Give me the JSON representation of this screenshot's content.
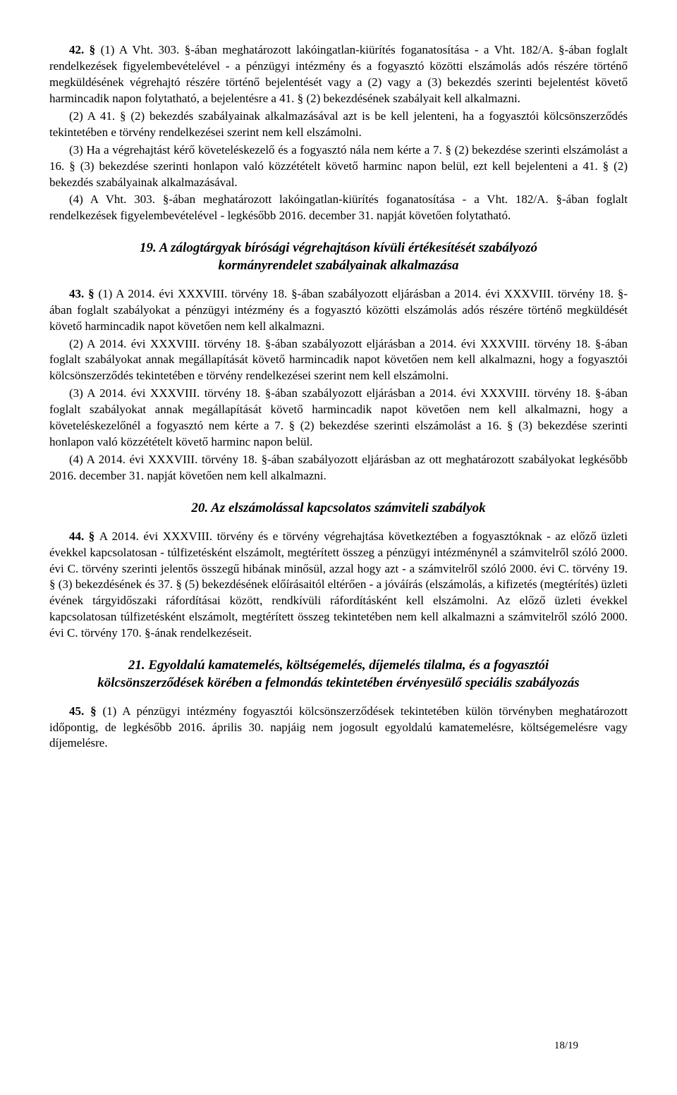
{
  "p1": "42. § (1) A Vht. 303. §-ában meghatározott lakóingatlan-kiürítés foganatosítása - a Vht. 182/A. §-ában foglalt rendelkezések figyelembevételével - a pénzügyi intézmény és a fogyasztó közötti elszámolás adós részére történő megküldésének végrehajtó részére történő bejelentését vagy a (2) vagy a (3) bekezdés szerinti bejelentést követő harmincadik napon folytatható, a bejelentésre a 41. § (2) bekezdésének szabályait kell alkalmazni.",
  "p2": "(2) A 41. § (2) bekezdés szabályainak alkalmazásával azt is be kell jelenteni, ha a fogyasztói kölcsönszerződés tekintetében e törvény rendelkezései szerint nem kell elszámolni.",
  "p3": "(3) Ha a végrehajtást kérő követeléskezelő és a fogyasztó nála nem kérte a 7. § (2) bekezdése szerinti elszámolást a 16. § (3) bekezdése szerinti honlapon való közzétételt követő harminc napon belül, ezt kell bejelenteni a 41. § (2) bekezdés szabályainak alkalmazásával.",
  "p4": "(4) A Vht. 303. §-ában meghatározott lakóingatlan-kiürítés foganatosítása - a Vht. 182/A. §-ában foglalt rendelkezések figyelembevételével - legkésőbb 2016. december 31. napját követően folytatható.",
  "h19": "19. A zálogtárgyak bírósági végrehajtáson kívüli értékesítését szabályozó kormányrendelet szabályainak alkalmazása",
  "p5a": "43. § ",
  "p5b": "(1) A 2014. évi XXXVIII. törvény 18. §-ában szabályozott eljárásban a 2014. évi XXXVIII. törvény 18. §-ában foglalt szabályokat a pénzügyi intézmény és a fogyasztó közötti elszámolás adós részére történő megküldését követő harmincadik napot követően nem kell alkalmazni.",
  "p6": "(2) A 2014. évi XXXVIII. törvény 18. §-ában szabályozott eljárásban a 2014. évi XXXVIII. törvény 18. §-ában foglalt szabályokat annak megállapítását követő harmincadik napot követően nem kell alkalmazni, hogy a fogyasztói kölcsönszerződés tekintetében e törvény rendelkezései szerint nem kell elszámolni.",
  "p7": "(3) A 2014. évi XXXVIII. törvény 18. §-ában szabályozott eljárásban a 2014. évi XXXVIII. törvény 18. §-ában foglalt szabályokat annak megállapítását követő harmincadik napot követően nem kell alkalmazni, hogy a követeléskezelőnél a fogyasztó nem kérte a 7. § (2) bekezdése szerinti elszámolást a 16. § (3) bekezdése szerinti honlapon való közzétételt követő harminc napon belül.",
  "p8": "(4) A 2014. évi XXXVIII. törvény 18. §-ában szabályozott eljárásban az ott meghatározott szabályokat legkésőbb 2016. december 31. napját követően nem kell alkalmazni.",
  "h20": "20. Az elszámolással kapcsolatos számviteli szabályok",
  "p9a": "44. § ",
  "p9b": "A 2014. évi XXXVIII. törvény és e törvény végrehajtása következtében a fogyasztóknak - az előző üzleti évekkel kapcsolatosan - túlfizetésként elszámolt, megtérített összeg a pénzügyi intézménynél a számvitelről szóló 2000. évi C. törvény szerinti jelentős összegű hibának minősül, azzal hogy azt - a számvitelről szóló 2000. évi C. törvény 19. § (3) bekezdésének és 37. § (5) bekezdésének előírásaitól eltérően - a jóváírás (elszámolás, a kifizetés (megtérítés) üzleti évének tárgyidőszaki ráfordításai között, rendkívüli ráfordításként kell elszámolni. Az előző üzleti évekkel kapcsolatosan túlfizetésként elszámolt, megtérített összeg tekintetében nem kell alkalmazni a számvitelről szóló 2000. évi C. törvény 170. §-ának rendelkezéseit.",
  "h21": "21. Egyoldalú kamatemelés, költségemelés, díjemelés tilalma, és a fogyasztói kölcsönszerződések körében a felmondás tekintetében érvényesülő speciális szabályozás",
  "p10a": "45. § ",
  "p10b": "(1) A pénzügyi intézmény fogyasztói kölcsönszerződések tekintetében külön törvényben meghatározott időpontig, de legkésőbb 2016. április 30. napjáig nem jogosult egyoldalú kamatemelésre, költségemelésre vagy díjemelésre.",
  "pagenum": "18/19"
}
